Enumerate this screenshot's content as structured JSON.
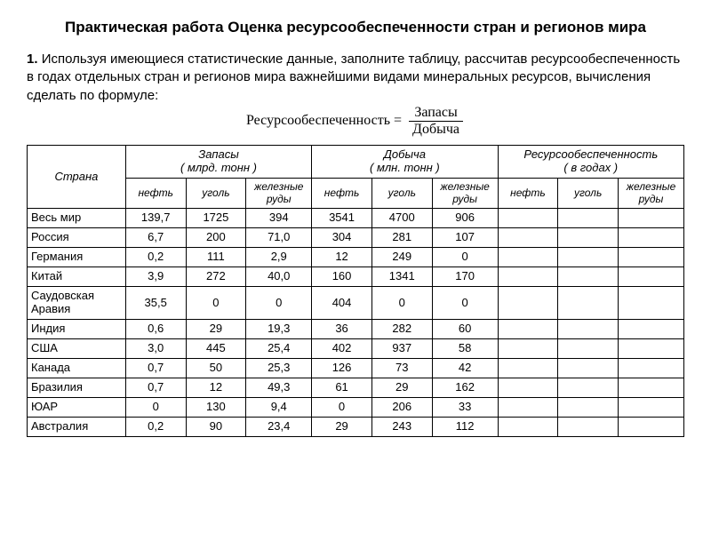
{
  "title": "Практическая работа Оценка ресурсообеспеченности стран и регионов мира",
  "task_num": "1.",
  "task_text": "Используя имеющиеся статистические данные, заполните таблицу, рассчитав ресурсообеспеченность в годах отдельных стран и регионов мира важнейшими видами минеральных ресурсов, вычисления сделать по формуле:",
  "formula": {
    "lhs": "Ресурсообеспеченность =",
    "top": "Запасы",
    "bot": "Добыча"
  },
  "headers": {
    "country": "Страна",
    "groups": [
      {
        "label": "Запасы",
        "unit": "( млрд. тонн )"
      },
      {
        "label": "Добыча",
        "unit": "( млн. тонн )"
      },
      {
        "label": "Ресурсообеспеченность",
        "unit": "( в годах )"
      }
    ],
    "sub": [
      "нефть",
      "уголь",
      "железные руды",
      "нефть",
      "уголь",
      "железные руды",
      "нефть",
      "уголь",
      "железные руды"
    ]
  },
  "rows": [
    {
      "country": "Весь мир",
      "v": [
        "139,7",
        "1725",
        "394",
        "3541",
        "4700",
        "906",
        "",
        "",
        ""
      ]
    },
    {
      "country": "Россия",
      "v": [
        "6,7",
        "200",
        "71,0",
        "304",
        "281",
        "107",
        "",
        "",
        ""
      ]
    },
    {
      "country": "Германия",
      "v": [
        "0,2",
        "111",
        "2,9",
        "12",
        "249",
        "0",
        "",
        "",
        ""
      ]
    },
    {
      "country": "Китай",
      "v": [
        "3,9",
        "272",
        "40,0",
        "160",
        "1341",
        "170",
        "",
        "",
        ""
      ]
    },
    {
      "country": "Саудовская Аравия",
      "v": [
        "35,5",
        "0",
        "0",
        "404",
        "0",
        "0",
        "",
        "",
        ""
      ]
    },
    {
      "country": "Индия",
      "v": [
        "0,6",
        "29",
        "19,3",
        "36",
        "282",
        "60",
        "",
        "",
        ""
      ]
    },
    {
      "country": "США",
      "v": [
        "3,0",
        "445",
        "25,4",
        "402",
        "937",
        "58",
        "",
        "",
        ""
      ]
    },
    {
      "country": "Канада",
      "v": [
        "0,7",
        "50",
        "25,3",
        "126",
        "73",
        "42",
        "",
        "",
        ""
      ]
    },
    {
      "country": "Бразилия",
      "v": [
        "0,7",
        "12",
        "49,3",
        "61",
        "29",
        "162",
        "",
        "",
        ""
      ]
    },
    {
      "country": "ЮАР",
      "v": [
        "0",
        "130",
        "9,4",
        "0",
        "206",
        "33",
        "",
        "",
        ""
      ]
    },
    {
      "country": "Австралия",
      "v": [
        "0,2",
        "90",
        "23,4",
        "29",
        "243",
        "112",
        "",
        "",
        ""
      ]
    }
  ],
  "style": {
    "font_family": "Arial",
    "title_fontsize": 17,
    "body_fontsize": 15,
    "table_fontsize": 13,
    "border_color": "#000000",
    "background_color": "#ffffff",
    "text_color": "#000000"
  }
}
